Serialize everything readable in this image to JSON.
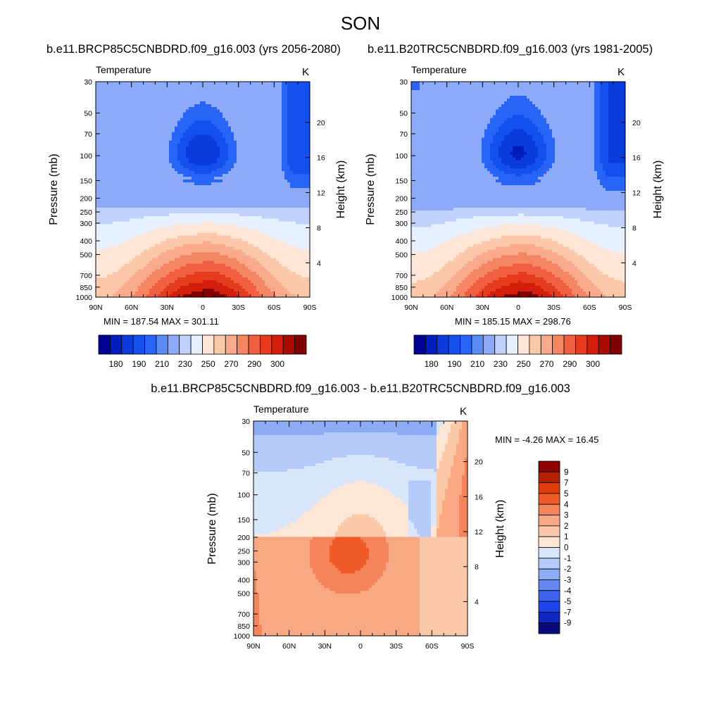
{
  "figure": {
    "title": "SON",
    "diff_title": "b.e11.BRCP85C5CNBDRD.f09_g16.003 - b.e11.B20TRC5CNBDRD.f09_g16.003"
  },
  "colors": {
    "abs_palette": [
      "#000096",
      "#001ebe",
      "#0a3cdc",
      "#1450f0",
      "#2864f5",
      "#5a8cf5",
      "#8caaf8",
      "#bed2fc",
      "#e6f0ff",
      "#ffe6d6",
      "#fcc8aa",
      "#f8aa8a",
      "#f58664",
      "#f06040",
      "#e63c1e",
      "#d21e0a",
      "#aa0a00",
      "#820000"
    ],
    "diff_palette": [
      "#0a0a7a",
      "#0f28c0",
      "#1e46f0",
      "#3c64f0",
      "#6488f0",
      "#8cacf5",
      "#b4cbfa",
      "#d8e6fc",
      "#fde6d6",
      "#fcc8aa",
      "#f8a882",
      "#f5845a",
      "#f05a28",
      "#e03c0a",
      "#b42000",
      "#8c0000"
    ]
  },
  "chart_data": [
    {
      "type": "heatmap",
      "subtitle": "b.e11.BRCP85C5CNBDRD.f09_g16.003 (yrs 2056-2080)",
      "variable": "Temperature",
      "units": "K",
      "ylabel": "Pressure (mb)",
      "ylabel_right": "Height (km)",
      "x_ticks": [
        "90N",
        "60N",
        "30N",
        "0",
        "30S",
        "60S",
        "90S"
      ],
      "y_ticks": [
        "30",
        "50",
        "70",
        "100",
        "150",
        "200",
        "250",
        "300",
        "400",
        "500",
        "700",
        "850",
        "1000"
      ],
      "height_ticks": [
        "4",
        "8",
        "12",
        "16",
        "20"
      ],
      "min_max_text": "MIN = 187.54  MAX = 301.11",
      "min": 187.54,
      "max": 301.11,
      "colorbar_labels": [
        "180",
        "190",
        "210",
        "230",
        "250",
        "270",
        "290",
        "300"
      ]
    },
    {
      "type": "heatmap",
      "subtitle": "b.e11.B20TRC5CNBDRD.f09_g16.003 (yrs 1981-2005)",
      "variable": "Temperature",
      "units": "K",
      "ylabel": "Pressure (mb)",
      "ylabel_right": "Height (km)",
      "x_ticks": [
        "90N",
        "60N",
        "30N",
        "0",
        "30S",
        "60S",
        "90S"
      ],
      "y_ticks": [
        "30",
        "50",
        "70",
        "100",
        "150",
        "200",
        "250",
        "300",
        "400",
        "500",
        "700",
        "850",
        "1000"
      ],
      "height_ticks": [
        "4",
        "8",
        "12",
        "16",
        "20"
      ],
      "min_max_text": "MIN = 185.15  MAX = 298.76",
      "min": 185.15,
      "max": 298.76,
      "colorbar_labels": [
        "180",
        "190",
        "210",
        "230",
        "250",
        "270",
        "290",
        "300"
      ]
    },
    {
      "type": "heatmap",
      "variable": "Temperature",
      "units": "K",
      "ylabel": "Pressure (mb)",
      "ylabel_right": "Height (km)",
      "x_ticks": [
        "90N",
        "60N",
        "30N",
        "0",
        "30S",
        "60S",
        "90S"
      ],
      "y_ticks": [
        "30",
        "50",
        "70",
        "100",
        "150",
        "200",
        "250",
        "300",
        "400",
        "500",
        "700",
        "850",
        "1000"
      ],
      "height_ticks": [
        "4",
        "8",
        "12",
        "16",
        "20"
      ],
      "min_max_text": "MIN =  -4.26  MAX =  16.45",
      "min": -4.26,
      "max": 16.45,
      "colorbar_labels": [
        "9",
        "7",
        "5",
        "4",
        "3",
        "2",
        "1",
        "0",
        "-1",
        "-2",
        "-3",
        "-4",
        "-5",
        "-7",
        "-9"
      ]
    }
  ]
}
